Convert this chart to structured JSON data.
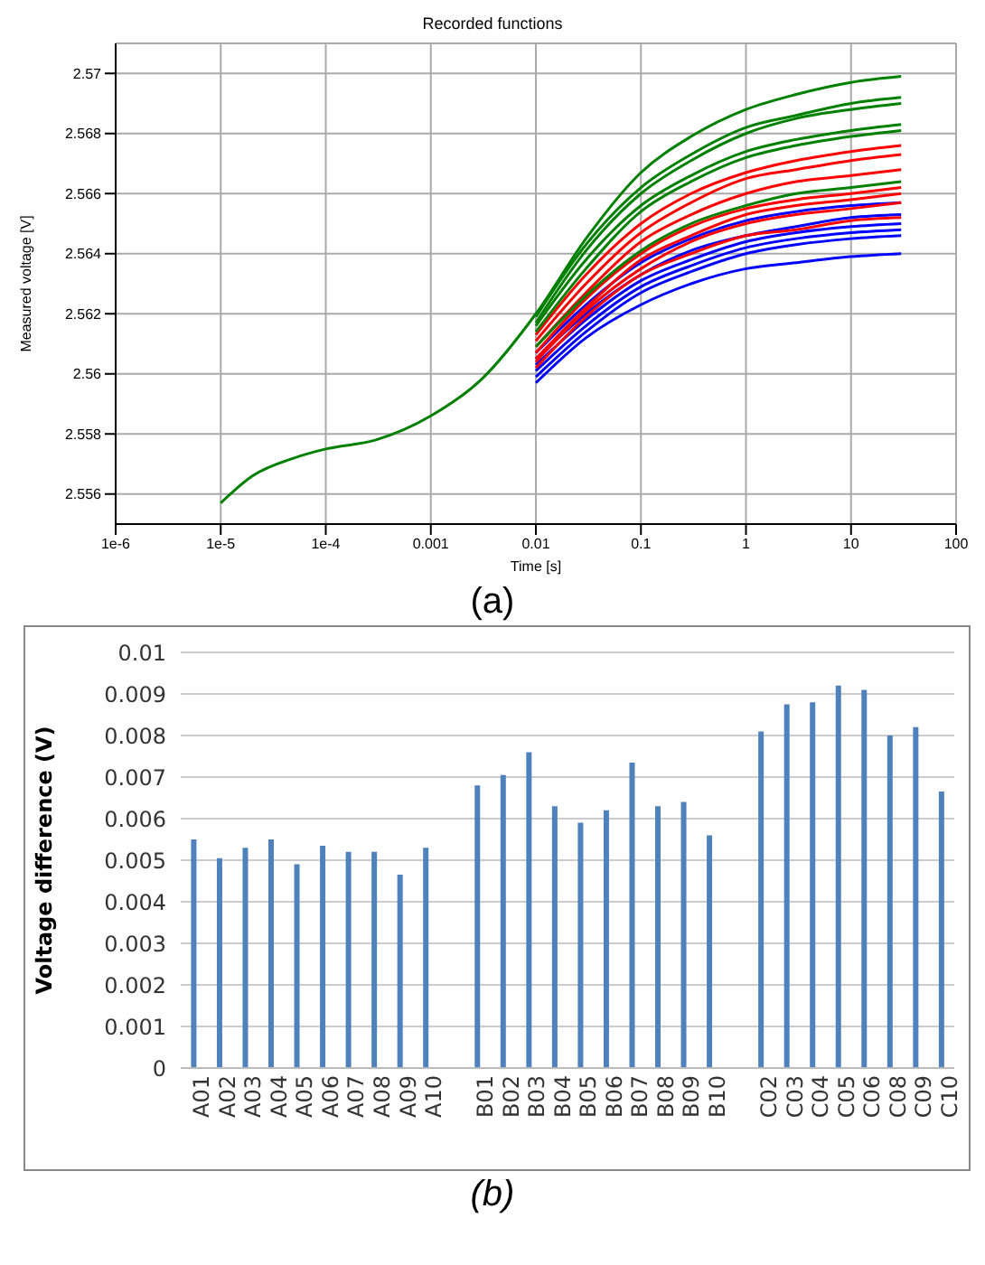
{
  "chart_data": [
    {
      "type": "line",
      "title": "Recorded functions",
      "xlabel": "Time [s]",
      "ylabel": "Measured voltage [V]",
      "annotations": [
        "(a)"
      ],
      "log": "x",
      "grid": true,
      "marker": "none",
      "xlim": [
        1e-06,
        100
      ],
      "xticks": [
        {
          "value": 1e-06,
          "label": "1e-6"
        },
        {
          "value": 1e-05,
          "label": "1e-5"
        },
        {
          "value": 0.0001,
          "label": "1e-4"
        },
        0.001,
        0.01,
        0.1,
        1,
        10,
        100
      ],
      "ylim": [
        2.555,
        2.571
      ],
      "yticks": [
        2.556,
        2.558,
        2.56,
        2.562,
        2.564,
        2.566,
        2.568,
        2.57
      ],
      "x": [
        1e-05,
        2e-05,
        5e-05,
        0.0001,
        0.0003,
        0.001,
        0.003,
        0.01,
        0.03,
        0.1,
        0.3,
        1,
        3,
        10,
        30
      ],
      "series": [
        {
          "color": "#0000ff",
          "values": [
            null,
            null,
            null,
            null,
            null,
            null,
            null,
            2.5607,
            2.5623,
            2.5637,
            2.5645,
            2.5651,
            2.5654,
            2.5656,
            2.5657
          ]
        },
        {
          "color": "#0000ff",
          "values": [
            null,
            null,
            null,
            null,
            null,
            null,
            null,
            2.5605,
            2.562,
            2.5633,
            2.5641,
            2.5646,
            2.5649,
            2.5652,
            2.5653
          ]
        },
        {
          "color": "#0000ff",
          "values": [
            null,
            null,
            null,
            null,
            null,
            null,
            null,
            2.5603,
            2.5618,
            2.5631,
            2.5638,
            2.5644,
            2.5647,
            2.5649,
            2.565
          ]
        },
        {
          "color": "#0000ff",
          "values": [
            null,
            null,
            null,
            null,
            null,
            null,
            null,
            2.5601,
            2.5616,
            2.5629,
            2.5636,
            2.5642,
            2.5645,
            2.5647,
            2.5648
          ]
        },
        {
          "color": "#0000ff",
          "values": [
            null,
            null,
            null,
            null,
            null,
            null,
            null,
            2.5599,
            2.5614,
            2.5627,
            2.5634,
            2.564,
            2.5643,
            2.5645,
            2.5646
          ]
        },
        {
          "color": "#0000ff",
          "values": [
            null,
            null,
            null,
            null,
            null,
            null,
            null,
            2.5597,
            2.5612,
            2.5623,
            2.563,
            2.5635,
            2.5637,
            2.5639,
            2.564
          ]
        },
        {
          "color": "#ff0000",
          "values": [
            null,
            null,
            null,
            null,
            null,
            null,
            null,
            2.5613,
            2.5633,
            2.565,
            2.566,
            2.5667,
            2.5671,
            2.5674,
            2.5676
          ]
        },
        {
          "color": "#ff0000",
          "values": [
            null,
            null,
            null,
            null,
            null,
            null,
            null,
            2.5611,
            2.563,
            2.5647,
            2.5657,
            2.5665,
            2.5668,
            2.5671,
            2.5673
          ]
        },
        {
          "color": "#ff0000",
          "values": [
            null,
            null,
            null,
            null,
            null,
            null,
            null,
            2.5609,
            2.5627,
            2.5644,
            2.5653,
            2.566,
            2.5664,
            2.5666,
            2.5668
          ]
        },
        {
          "color": "#ff0000",
          "values": [
            null,
            null,
            null,
            null,
            null,
            null,
            null,
            2.5607,
            2.5625,
            2.564,
            2.5649,
            2.5655,
            2.5658,
            2.566,
            2.5662
          ]
        },
        {
          "color": "#ff0000",
          "values": [
            null,
            null,
            null,
            null,
            null,
            null,
            null,
            2.5605,
            2.5622,
            2.5638,
            2.5646,
            2.5653,
            2.5656,
            2.5658,
            2.566
          ]
        },
        {
          "color": "#ff0000",
          "values": [
            null,
            null,
            null,
            null,
            null,
            null,
            null,
            2.5604,
            2.5621,
            2.5635,
            2.5644,
            2.565,
            2.5653,
            2.5655,
            2.5657
          ]
        },
        {
          "color": "#ff0000",
          "values": [
            null,
            null,
            null,
            null,
            null,
            null,
            null,
            2.5602,
            2.5619,
            2.5633,
            2.564,
            2.5646,
            2.5648,
            2.5651,
            2.5652
          ]
        },
        {
          "color": "#008000",
          "values": [
            null,
            null,
            null,
            null,
            null,
            null,
            null,
            2.5609,
            2.5626,
            2.5641,
            2.565,
            2.5656,
            2.566,
            2.5662,
            2.5664
          ]
        },
        {
          "color": "#008000",
          "values": [
            null,
            null,
            null,
            null,
            null,
            null,
            null,
            2.5614,
            2.5635,
            2.5654,
            2.5664,
            2.5672,
            2.5676,
            2.5679,
            2.5681
          ]
        },
        {
          "color": "#008000",
          "values": [
            null,
            null,
            null,
            null,
            null,
            null,
            null,
            2.5616,
            2.5638,
            2.5656,
            2.5666,
            2.5674,
            2.5678,
            2.5681,
            2.5683
          ]
        },
        {
          "color": "#008000",
          "values": [
            null,
            null,
            null,
            null,
            null,
            null,
            null,
            2.5617,
            2.5641,
            2.566,
            2.5671,
            2.568,
            2.5685,
            2.5688,
            2.569
          ]
        },
        {
          "color": "#008000",
          "values": [
            null,
            null,
            null,
            null,
            null,
            null,
            null,
            2.5619,
            2.5643,
            2.5662,
            2.5673,
            2.5682,
            2.5686,
            2.569,
            2.5692
          ]
        },
        {
          "color": "#008000",
          "values": [
            2.5557,
            2.5566,
            2.5572,
            2.5575,
            2.5578,
            2.5586,
            2.5598,
            2.562,
            2.5645,
            2.5667,
            2.5679,
            2.5688,
            2.5693,
            2.5697,
            2.5699
          ]
        }
      ]
    },
    {
      "type": "bar",
      "ylabel": "Voltage difference (V)",
      "annotations": [
        "(b)"
      ],
      "grid": "y",
      "color": "#4f81bd",
      "categories": [
        "A01",
        "A02",
        "A03",
        "A04",
        "A05",
        "A06",
        "A07",
        "A08",
        "A09",
        "A10",
        null,
        "B01",
        "B02",
        "B03",
        "B04",
        "B05",
        "B06",
        "B07",
        "B08",
        "B09",
        "B10",
        null,
        "C02",
        "C03",
        "C04",
        "C05",
        "C06",
        "C08",
        "C09",
        "C10"
      ],
      "values": [
        0.0055,
        0.00505,
        0.0053,
        0.0055,
        0.0049,
        0.00535,
        0.0052,
        0.0052,
        0.00465,
        0.0053,
        null,
        0.0068,
        0.00705,
        0.0076,
        0.0063,
        0.0059,
        0.0062,
        0.00735,
        0.0063,
        0.0064,
        0.0056,
        null,
        0.0081,
        0.00875,
        0.0088,
        0.0092,
        0.0091,
        0.008,
        0.0082,
        0.00665
      ],
      "ylim": [
        0,
        0.01
      ],
      "yticks": [
        0,
        0.001,
        0.002,
        0.003,
        0.004,
        0.005,
        0.006,
        0.007,
        0.008,
        0.009,
        0.01
      ]
    }
  ]
}
